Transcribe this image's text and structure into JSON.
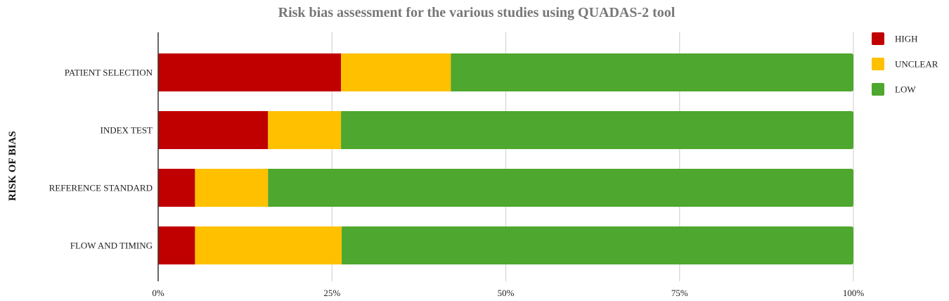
{
  "chart_data": {
    "type": "bar",
    "orientation": "horizontal",
    "stacked": true,
    "title": "Risk bias assessment for the various studies using QUADAS-2 tool",
    "xlabel": "",
    "ylabel": "RISK OF BIAS",
    "xlim": [
      0,
      100
    ],
    "x_unit": "percent",
    "grid": true,
    "legend_position": "top-right",
    "x_ticks": [
      "0%",
      "25%",
      "50%",
      "75%",
      "100%"
    ],
    "categories": [
      "PATIENT SELECTION",
      "INDEX TEST",
      "REFERENCE STANDARD",
      "FLOW AND TIMING"
    ],
    "series": [
      {
        "name": "HIGH",
        "color": "#c00000",
        "values": [
          26.3,
          15.8,
          5.3,
          5.3
        ]
      },
      {
        "name": "UNCLEAR",
        "color": "#ffc000",
        "values": [
          15.8,
          10.5,
          10.5,
          21.1
        ]
      },
      {
        "name": "LOW",
        "color": "#4ea72e",
        "values": [
          57.9,
          73.7,
          84.2,
          73.6
        ]
      }
    ]
  }
}
